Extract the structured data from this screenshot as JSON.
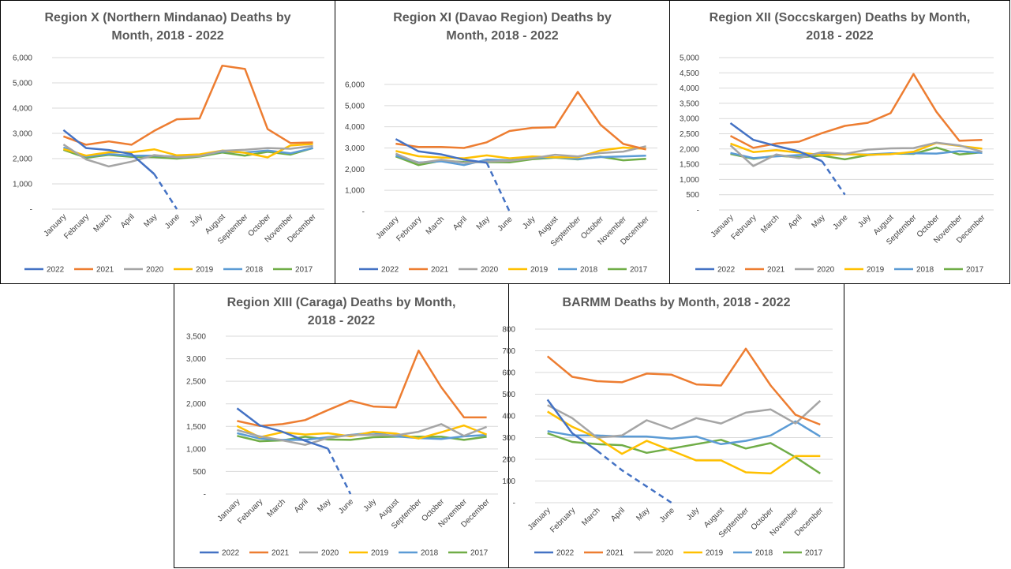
{
  "months": [
    "January",
    "February",
    "March",
    "April",
    "May",
    "June",
    "July",
    "August",
    "September",
    "October",
    "November",
    "December"
  ],
  "colors": {
    "2022": "#4472C4",
    "2021": "#ED7D31",
    "2020": "#A5A5A5",
    "2019": "#FFC000",
    "2018": "#5B9BD5",
    "2017": "#70AD47"
  },
  "legend_order": [
    "2022",
    "2021",
    "2020",
    "2019",
    "2018",
    "2017"
  ],
  "chart_data": [
    {
      "type": "line",
      "title_lines": [
        "Region X (Northern Mindanao) Deaths by",
        "Month, 2018 - 2022"
      ],
      "yticks": [
        "-",
        "1,000",
        "2,000",
        "3,000",
        "4,000",
        "5,000",
        "6,000"
      ],
      "ylim": [
        0,
        6000
      ],
      "series": [
        {
          "name": "2022",
          "values": [
            3130,
            2420,
            2340,
            2180,
            1390
          ],
          "projection": [
            1390,
            0
          ]
        },
        {
          "name": "2021",
          "values": [
            2880,
            2550,
            2680,
            2550,
            3100,
            3560,
            3590,
            5680,
            5550,
            3170,
            2620,
            2640
          ]
        },
        {
          "name": "2020",
          "values": [
            2560,
            1970,
            1690,
            1880,
            2140,
            2050,
            2100,
            2310,
            2350,
            2420,
            2390,
            2500
          ]
        },
        {
          "name": "2019",
          "values": [
            2380,
            2120,
            2250,
            2250,
            2370,
            2130,
            2170,
            2320,
            2230,
            2050,
            2520,
            2580
          ]
        },
        {
          "name": "2018",
          "values": [
            2440,
            2080,
            2180,
            2120,
            2120,
            2080,
            2130,
            2280,
            2240,
            2320,
            2210,
            2420
          ]
        },
        {
          "name": "2017",
          "values": [
            2350,
            2030,
            2150,
            2070,
            2060,
            2000,
            2080,
            2240,
            2120,
            2270,
            2160,
            2420
          ]
        }
      ]
    },
    {
      "type": "line",
      "title_lines": [
        "Region XI (Davao Region) Deaths by",
        "Month, 2018 - 2022"
      ],
      "yticks": [
        "-",
        "1,000",
        "2,000",
        "3,000",
        "4,000",
        "5,000",
        "6,000"
      ],
      "ylim": [
        0,
        6000
      ],
      "series": [
        {
          "name": "2022",
          "values": [
            3420,
            2840,
            2700,
            2450,
            2300
          ],
          "projection": [
            2300,
            0
          ]
        },
        {
          "name": "2021",
          "values": [
            3200,
            3050,
            3050,
            3000,
            3270,
            3800,
            3950,
            3980,
            5650,
            4100,
            3190,
            2930
          ]
        },
        {
          "name": "2020",
          "values": [
            2730,
            2290,
            2440,
            2300,
            2360,
            2390,
            2510,
            2680,
            2600,
            2760,
            2830,
            3080
          ]
        },
        {
          "name": "2019",
          "values": [
            2860,
            2610,
            2550,
            2510,
            2650,
            2510,
            2600,
            2560,
            2560,
            2880,
            3020,
            2960
          ]
        },
        {
          "name": "2018",
          "values": [
            2640,
            2310,
            2370,
            2190,
            2450,
            2420,
            2530,
            2560,
            2480,
            2570,
            2600,
            2640
          ]
        },
        {
          "name": "2017",
          "values": [
            2600,
            2190,
            2400,
            2340,
            2330,
            2320,
            2470,
            2540,
            2460,
            2590,
            2420,
            2490
          ]
        }
      ]
    },
    {
      "type": "line",
      "title_lines": [
        "Region XII (Soccskargen) Deaths by Month,",
        "2018 - 2022"
      ],
      "yticks": [
        "-",
        "500",
        "1,000",
        "1,500",
        "2,000",
        "2,500",
        "3,000",
        "3,500",
        "4,000",
        "4,500",
        "5,000"
      ],
      "ylim": [
        0,
        5000
      ],
      "series": [
        {
          "name": "2022",
          "values": [
            2850,
            2300,
            2100,
            1920,
            1600
          ],
          "projection": [
            1600,
            500
          ]
        },
        {
          "name": "2021",
          "values": [
            2430,
            2040,
            2180,
            2240,
            2520,
            2760,
            2860,
            3180,
            4460,
            3220,
            2270,
            2300
          ]
        },
        {
          "name": "2020",
          "values": [
            2120,
            1440,
            1820,
            1700,
            1900,
            1840,
            1980,
            2020,
            2030,
            2210,
            2120,
            1910
          ]
        },
        {
          "name": "2019",
          "values": [
            2180,
            1900,
            1960,
            1880,
            1800,
            1830,
            1810,
            1830,
            1910,
            2200,
            2100,
            2010
          ]
        },
        {
          "name": "2018",
          "values": [
            1870,
            1700,
            1760,
            1800,
            1850,
            1830,
            1820,
            1860,
            1860,
            1850,
            1930,
            1870
          ]
        },
        {
          "name": "2017",
          "values": [
            1840,
            1680,
            1780,
            1730,
            1780,
            1660,
            1800,
            1850,
            1840,
            2050,
            1820,
            1890
          ]
        }
      ]
    },
    {
      "type": "line",
      "title_lines": [
        "Region XIII (Caraga) Deaths by Month,",
        "2018 - 2022"
      ],
      "yticks": [
        "-",
        "500",
        "1,000",
        "1,500",
        "2,000",
        "2,500",
        "3,000",
        "3,500"
      ],
      "ylim": [
        0,
        3500
      ],
      "series": [
        {
          "name": "2022",
          "values": [
            1900,
            1520,
            1380,
            1180,
            1010
          ],
          "projection": [
            1010,
            0
          ]
        },
        {
          "name": "2021",
          "values": [
            1620,
            1510,
            1550,
            1640,
            1860,
            2070,
            1940,
            1920,
            3180,
            2370,
            1700,
            1700
          ]
        },
        {
          "name": "2020",
          "values": [
            1420,
            1280,
            1190,
            1090,
            1240,
            1310,
            1310,
            1300,
            1380,
            1550,
            1290,
            1490
          ]
        },
        {
          "name": "2019",
          "values": [
            1510,
            1260,
            1370,
            1320,
            1350,
            1280,
            1380,
            1340,
            1230,
            1370,
            1520,
            1320
          ]
        },
        {
          "name": "2018",
          "values": [
            1350,
            1230,
            1200,
            1200,
            1260,
            1310,
            1360,
            1280,
            1240,
            1220,
            1280,
            1310
          ]
        },
        {
          "name": "2017",
          "values": [
            1290,
            1170,
            1190,
            1270,
            1210,
            1200,
            1260,
            1270,
            1270,
            1270,
            1200,
            1270
          ]
        }
      ]
    },
    {
      "type": "line",
      "title_lines": [
        "BARMM Deaths by Month, 2018 - 2022"
      ],
      "yticks": [
        "-",
        "100",
        "200",
        "300",
        "400",
        "500",
        "600",
        "700",
        "800"
      ],
      "ylim": [
        0,
        800
      ],
      "series": [
        {
          "name": "2022",
          "values": [
            475,
            320,
            240
          ],
          "projection": [
            240,
            150,
            75,
            0
          ]
        },
        {
          "name": "2021",
          "values": [
            675,
            580,
            560,
            555,
            595,
            590,
            545,
            540,
            710,
            540,
            405,
            360
          ]
        },
        {
          "name": "2020",
          "values": [
            450,
            390,
            300,
            310,
            380,
            340,
            390,
            365,
            415,
            430,
            365,
            470
          ]
        },
        {
          "name": "2019",
          "values": [
            420,
            350,
            300,
            225,
            285,
            240,
            195,
            195,
            140,
            135,
            215,
            215
          ]
        },
        {
          "name": "2018",
          "values": [
            330,
            310,
            310,
            305,
            305,
            295,
            305,
            270,
            285,
            310,
            375,
            305
          ]
        },
        {
          "name": "2017",
          "values": [
            320,
            280,
            270,
            265,
            230,
            250,
            270,
            290,
            250,
            275,
            210,
            135
          ]
        }
      ]
    }
  ]
}
